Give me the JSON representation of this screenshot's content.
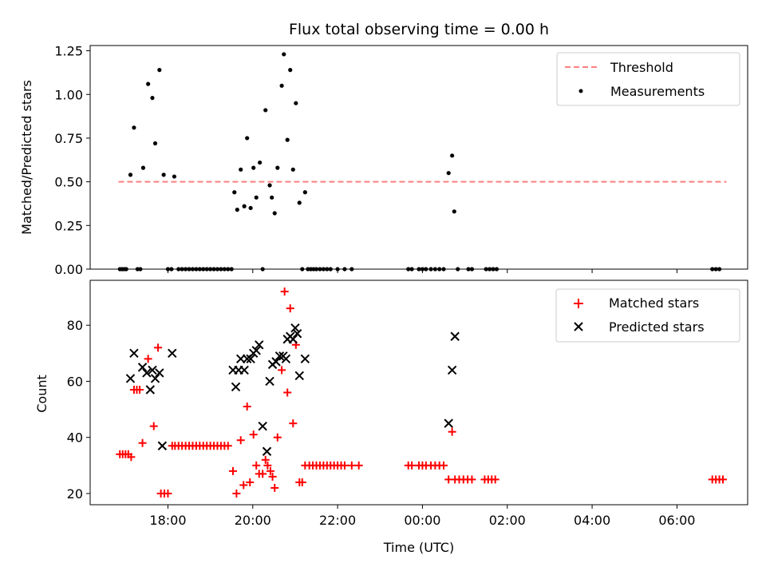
{
  "chart_data": [
    {
      "type": "scatter",
      "title": "Flux total observing time = 0.00 h",
      "xlabel": "",
      "ylabel": "Matched/Predicted stars",
      "xlim": [
        "16:10",
        "07:40"
      ],
      "ylim": [
        0,
        1.28
      ],
      "yticks": [
        0.0,
        0.25,
        0.5,
        0.75,
        1.0,
        1.25
      ],
      "yticklabels": [
        "0.00",
        "0.25",
        "0.50",
        "0.75",
        "1.00",
        "1.25"
      ],
      "xticks": [
        "18:00",
        "20:00",
        "22:00",
        "00:00",
        "02:00",
        "04:00",
        "06:00"
      ],
      "legend": {
        "position": "upper right",
        "entries": [
          "Threshold",
          "Measurements"
        ]
      },
      "threshold": {
        "name": "Threshold",
        "value": 0.5,
        "x_range": [
          "16:50",
          "07:10"
        ],
        "color": "#ff7f7f",
        "style": "dashed"
      },
      "series": [
        {
          "name": "Measurements",
          "color": "#000000",
          "marker": "dot",
          "points": [
            [
              "16:52",
              0.0
            ],
            [
              "16:55",
              0.0
            ],
            [
              "16:58",
              0.0
            ],
            [
              "17:01",
              0.0
            ],
            [
              "17:07",
              0.54
            ],
            [
              "17:12",
              0.81
            ],
            [
              "17:17",
              0.0
            ],
            [
              "17:21",
              0.0
            ],
            [
              "17:25",
              0.58
            ],
            [
              "17:32",
              1.06
            ],
            [
              "17:38",
              0.98
            ],
            [
              "17:42",
              0.72
            ],
            [
              "17:48",
              1.14
            ],
            [
              "17:54",
              0.54
            ],
            [
              "18:00",
              0.0
            ],
            [
              "18:05",
              0.0
            ],
            [
              "18:09",
              0.53
            ],
            [
              "18:15",
              0.0
            ],
            [
              "18:20",
              0.0
            ],
            [
              "18:25",
              0.0
            ],
            [
              "18:30",
              0.0
            ],
            [
              "18:35",
              0.0
            ],
            [
              "18:40",
              0.0
            ],
            [
              "18:45",
              0.0
            ],
            [
              "18:50",
              0.0
            ],
            [
              "18:55",
              0.0
            ],
            [
              "19:00",
              0.0
            ],
            [
              "19:05",
              0.0
            ],
            [
              "19:10",
              0.0
            ],
            [
              "19:15",
              0.0
            ],
            [
              "19:20",
              0.0
            ],
            [
              "19:25",
              0.0
            ],
            [
              "19:30",
              0.0
            ],
            [
              "19:34",
              0.44
            ],
            [
              "19:38",
              0.34
            ],
            [
              "19:43",
              0.57
            ],
            [
              "19:48",
              0.36
            ],
            [
              "19:52",
              0.75
            ],
            [
              "19:57",
              0.35
            ],
            [
              "20:01",
              0.58
            ],
            [
              "20:05",
              0.41
            ],
            [
              "20:10",
              0.61
            ],
            [
              "20:14",
              0.0
            ],
            [
              "20:18",
              0.91
            ],
            [
              "20:24",
              0.48
            ],
            [
              "20:27",
              0.41
            ],
            [
              "20:31",
              0.32
            ],
            [
              "20:35",
              0.58
            ],
            [
              "20:41",
              1.05
            ],
            [
              "20:44",
              1.23
            ],
            [
              "20:49",
              0.74
            ],
            [
              "20:53",
              1.14
            ],
            [
              "20:57",
              0.57
            ],
            [
              "21:01",
              0.95
            ],
            [
              "21:06",
              0.38
            ],
            [
              "21:10",
              0.0
            ],
            [
              "21:14",
              0.44
            ],
            [
              "21:18",
              0.0
            ],
            [
              "21:22",
              0.0
            ],
            [
              "21:26",
              0.0
            ],
            [
              "21:30",
              0.0
            ],
            [
              "21:35",
              0.0
            ],
            [
              "21:40",
              0.0
            ],
            [
              "21:45",
              0.0
            ],
            [
              "21:50",
              0.0
            ],
            [
              "22:00",
              0.0
            ],
            [
              "22:10",
              0.0
            ],
            [
              "22:20",
              0.0
            ],
            [
              "23:40",
              0.0
            ],
            [
              "23:45",
              0.0
            ],
            [
              "23:55",
              0.0
            ],
            [
              "24:00",
              0.0
            ],
            [
              "24:05",
              0.0
            ],
            [
              "24:12",
              0.0
            ],
            [
              "24:18",
              0.0
            ],
            [
              "24:24",
              0.0
            ],
            [
              "24:30",
              0.0
            ],
            [
              "24:37",
              0.55
            ],
            [
              "24:42",
              0.65
            ],
            [
              "24:45",
              0.33
            ],
            [
              "24:50",
              0.0
            ],
            [
              "25:05",
              0.0
            ],
            [
              "25:10",
              0.0
            ],
            [
              "25:30",
              0.0
            ],
            [
              "25:35",
              0.0
            ],
            [
              "25:40",
              0.0
            ],
            [
              "25:45",
              0.0
            ],
            [
              "30:50",
              0.0
            ],
            [
              "30:55",
              0.0
            ],
            [
              "31:00",
              0.0
            ]
          ]
        }
      ]
    },
    {
      "type": "scatter",
      "title": "",
      "xlabel": "Time (UTC)",
      "ylabel": "Count",
      "xlim": [
        "16:10",
        "07:40"
      ],
      "ylim": [
        16,
        96
      ],
      "yticks": [
        20,
        40,
        60,
        80
      ],
      "yticklabels": [
        "20",
        "40",
        "60",
        "80"
      ],
      "xticks": [
        "18:00",
        "20:00",
        "22:00",
        "00:00",
        "02:00",
        "04:00",
        "06:00"
      ],
      "xticklabels": [
        "18:00",
        "20:00",
        "22:00",
        "00:00",
        "02:00",
        "04:00",
        "06:00"
      ],
      "legend": {
        "position": "upper right",
        "entries": [
          "Matched stars",
          "Predicted stars"
        ]
      },
      "series": [
        {
          "name": "Matched stars",
          "color": "#ff0000",
          "marker": "plus",
          "points": [
            [
              "16:52",
              34
            ],
            [
              "16:56",
              34
            ],
            [
              "17:00",
              34
            ],
            [
              "17:04",
              34
            ],
            [
              "17:08",
              33
            ],
            [
              "17:12",
              57
            ],
            [
              "17:16",
              57
            ],
            [
              "17:20",
              57
            ],
            [
              "17:24",
              38
            ],
            [
              "17:32",
              68
            ],
            [
              "17:40",
              44
            ],
            [
              "17:46",
              72
            ],
            [
              "17:50",
              20
            ],
            [
              "17:55",
              20
            ],
            [
              "18:00",
              20
            ],
            [
              "18:06",
              37
            ],
            [
              "18:10",
              37
            ],
            [
              "18:15",
              37
            ],
            [
              "18:20",
              37
            ],
            [
              "18:25",
              37
            ],
            [
              "18:30",
              37
            ],
            [
              "18:35",
              37
            ],
            [
              "18:40",
              37
            ],
            [
              "18:45",
              37
            ],
            [
              "18:50",
              37
            ],
            [
              "18:55",
              37
            ],
            [
              "19:00",
              37
            ],
            [
              "19:05",
              37
            ],
            [
              "19:10",
              37
            ],
            [
              "19:15",
              37
            ],
            [
              "19:20",
              37
            ],
            [
              "19:25",
              37
            ],
            [
              "19:32",
              28
            ],
            [
              "19:37",
              20
            ],
            [
              "19:43",
              39
            ],
            [
              "19:47",
              23
            ],
            [
              "19:52",
              51
            ],
            [
              "19:56",
              24
            ],
            [
              "20:01",
              41
            ],
            [
              "20:05",
              30
            ],
            [
              "20:09",
              27
            ],
            [
              "20:14",
              27
            ],
            [
              "20:18",
              32
            ],
            [
              "20:21",
              30
            ],
            [
              "20:25",
              28
            ],
            [
              "20:28",
              26
            ],
            [
              "20:31",
              22
            ],
            [
              "20:35",
              40
            ],
            [
              "20:41",
              64
            ],
            [
              "20:45",
              92
            ],
            [
              "20:49",
              56
            ],
            [
              "20:53",
              86
            ],
            [
              "20:57",
              45
            ],
            [
              "21:01",
              73
            ],
            [
              "21:06",
              24
            ],
            [
              "21:10",
              24
            ],
            [
              "21:14",
              30
            ],
            [
              "21:20",
              30
            ],
            [
              "21:25",
              30
            ],
            [
              "21:30",
              30
            ],
            [
              "21:35",
              30
            ],
            [
              "21:40",
              30
            ],
            [
              "21:45",
              30
            ],
            [
              "21:50",
              30
            ],
            [
              "21:55",
              30
            ],
            [
              "22:00",
              30
            ],
            [
              "22:05",
              30
            ],
            [
              "22:10",
              30
            ],
            [
              "22:20",
              30
            ],
            [
              "22:30",
              30
            ],
            [
              "23:40",
              30
            ],
            [
              "23:45",
              30
            ],
            [
              "23:55",
              30
            ],
            [
              "24:00",
              30
            ],
            [
              "24:05",
              30
            ],
            [
              "24:12",
              30
            ],
            [
              "24:18",
              30
            ],
            [
              "24:24",
              30
            ],
            [
              "24:30",
              30
            ],
            [
              "24:37",
              25
            ],
            [
              "24:42",
              42
            ],
            [
              "24:46",
              25
            ],
            [
              "24:52",
              25
            ],
            [
              "24:58",
              25
            ],
            [
              "25:04",
              25
            ],
            [
              "25:10",
              25
            ],
            [
              "25:28",
              25
            ],
            [
              "25:33",
              25
            ],
            [
              "25:38",
              25
            ],
            [
              "25:43",
              25
            ],
            [
              "30:50",
              25
            ],
            [
              "30:55",
              25
            ],
            [
              "31:00",
              25
            ],
            [
              "31:05",
              25
            ]
          ]
        },
        {
          "name": "Predicted stars",
          "color": "#000000",
          "marker": "x",
          "points": [
            [
              "17:07",
              61
            ],
            [
              "17:12",
              70
            ],
            [
              "17:24",
              65
            ],
            [
              "17:30",
              63
            ],
            [
              "17:35",
              57
            ],
            [
              "17:38",
              64
            ],
            [
              "17:42",
              61
            ],
            [
              "17:48",
              63
            ],
            [
              "17:52",
              37
            ],
            [
              "18:06",
              70
            ],
            [
              "19:32",
              64
            ],
            [
              "19:36",
              58
            ],
            [
              "19:40",
              64
            ],
            [
              "19:43",
              68
            ],
            [
              "19:48",
              64
            ],
            [
              "19:52",
              68
            ],
            [
              "19:57",
              68
            ],
            [
              "20:01",
              70
            ],
            [
              "20:05",
              71
            ],
            [
              "20:09",
              73
            ],
            [
              "20:14",
              44
            ],
            [
              "20:20",
              35
            ],
            [
              "20:24",
              60
            ],
            [
              "20:28",
              66
            ],
            [
              "20:33",
              67
            ],
            [
              "20:38",
              69
            ],
            [
              "20:43",
              69
            ],
            [
              "20:47",
              68
            ],
            [
              "20:49",
              75
            ],
            [
              "20:53",
              76
            ],
            [
              "20:57",
              75
            ],
            [
              "21:00",
              79
            ],
            [
              "21:03",
              77
            ],
            [
              "21:06",
              62
            ],
            [
              "21:14",
              68
            ],
            [
              "24:37",
              45
            ],
            [
              "24:42",
              64
            ],
            [
              "24:46",
              76
            ]
          ]
        }
      ]
    }
  ]
}
